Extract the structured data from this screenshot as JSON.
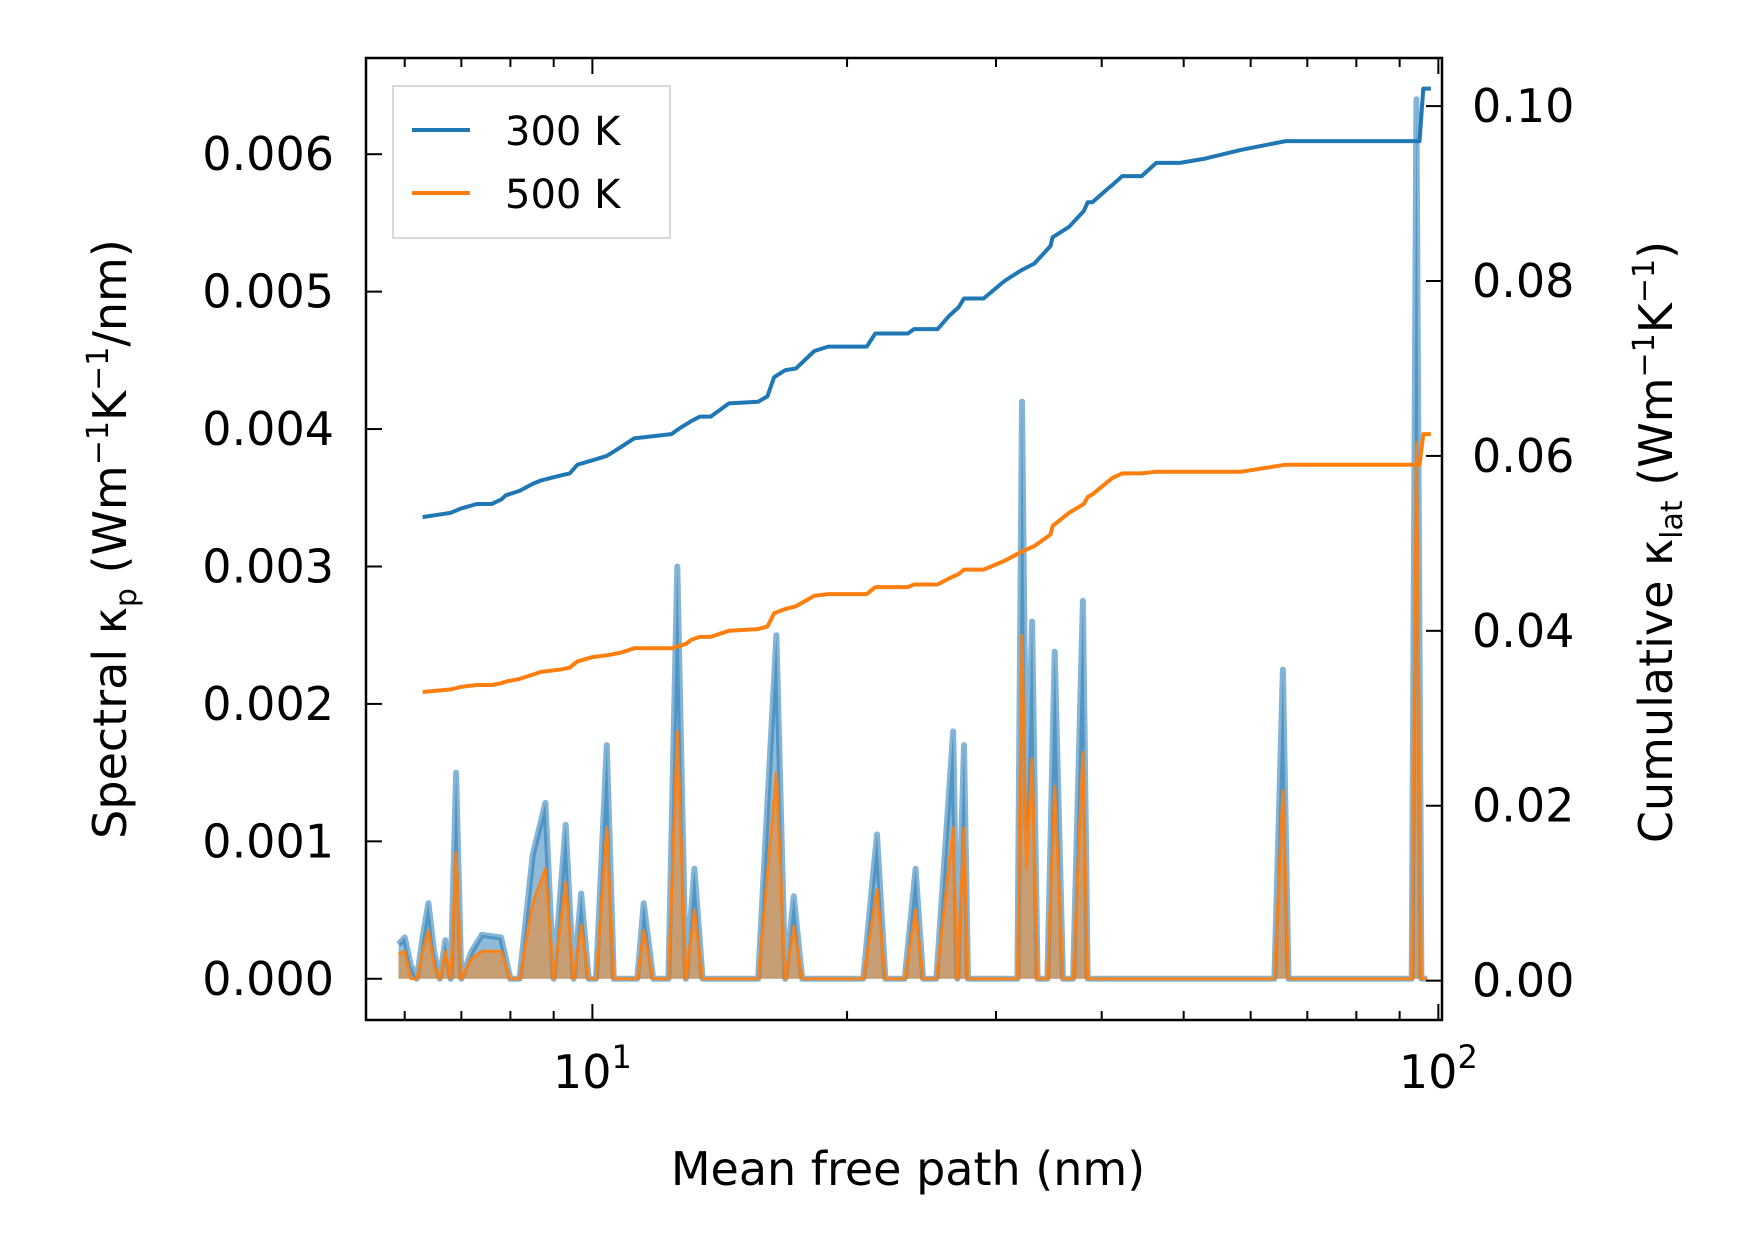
{
  "chart_data": {
    "type": "line",
    "xlabel": "Mean free path (nm)",
    "ylabel_left": {
      "main": "Spectral κ",
      "sub": "p",
      "unit_prefix": " (Wm",
      "exp1": "−1",
      "unit_mid": "K",
      "exp2": "−1",
      "unit_suffix": "/nm)"
    },
    "ylabel_right": {
      "main": "Cumulative κ",
      "sub": "lat",
      "unit_prefix": " (Wm",
      "exp1": "−1",
      "unit_mid": "K",
      "exp2": "−1",
      "unit_suffix": ")"
    },
    "x_scale": "log",
    "xlim": [
      5.4,
      101
    ],
    "ylim_left": [
      -0.0003,
      0.0067
    ],
    "ylim_right": [
      -0.0045,
      0.1055
    ],
    "x_ticks": [
      {
        "value": 10,
        "base": "10",
        "exp": "1"
      },
      {
        "value": 100,
        "base": "10",
        "exp": "2"
      }
    ],
    "y_ticks_left": [
      "0.000",
      "0.001",
      "0.002",
      "0.003",
      "0.004",
      "0.005",
      "0.006"
    ],
    "y_ticks_right": [
      "0.00",
      "0.02",
      "0.04",
      "0.06",
      "0.08",
      "0.10"
    ],
    "legend": {
      "position": "upper-left",
      "entries": [
        {
          "label": "300 K",
          "color": "#1f77b4"
        },
        {
          "label": "500 K",
          "color": "#ff7f0e"
        }
      ]
    },
    "colors": {
      "s300": "#1f77b4",
      "s500": "#ff7f0e",
      "fill300": "#1f77b4",
      "fill500": "#ff7f0e"
    },
    "cumulative": [
      {
        "name": "300 K",
        "axis": "right",
        "x": [
          6.3,
          6.8,
          7.0,
          7.3,
          7.6,
          7.8,
          7.9,
          8.2,
          8.5,
          8.7,
          9.2,
          9.4,
          9.6,
          10.0,
          10.4,
          10.8,
          11.2,
          12.4,
          12.7,
          12.9,
          13.1,
          13.4,
          13.8,
          14.5,
          15.7,
          16.1,
          16.4,
          16.9,
          17.4,
          18.3,
          19.0,
          21.1,
          21.6,
          23.6,
          24.0,
          25.6,
          26.4,
          27.1,
          27.5,
          29.0,
          30.7,
          32.1,
          33.3,
          34.8,
          35.0,
          36.6,
          38.1,
          38.5,
          39.0,
          40.6,
          41.2,
          42.3,
          44.6,
          46.4,
          47.0,
          49.5,
          53.0,
          58.5,
          66.0,
          68.0,
          72.0,
          90.5,
          95.0,
          96.0,
          98.0
        ],
        "y": [
          0.053,
          0.0535,
          0.054,
          0.0545,
          0.0545,
          0.055,
          0.0555,
          0.056,
          0.0568,
          0.0572,
          0.0578,
          0.058,
          0.059,
          0.0595,
          0.06,
          0.061,
          0.062,
          0.0625,
          0.0632,
          0.0636,
          0.064,
          0.0645,
          0.0645,
          0.066,
          0.0662,
          0.0668,
          0.069,
          0.0698,
          0.07,
          0.072,
          0.0725,
          0.0725,
          0.074,
          0.074,
          0.0745,
          0.0745,
          0.076,
          0.077,
          0.078,
          0.078,
          0.08,
          0.0812,
          0.082,
          0.084,
          0.085,
          0.0862,
          0.088,
          0.089,
          0.089,
          0.0905,
          0.091,
          0.092,
          0.092,
          0.0935,
          0.0935,
          0.0935,
          0.094,
          0.095,
          0.096,
          0.096,
          0.096,
          0.096,
          0.096,
          0.102,
          0.102
        ]
      },
      {
        "name": "500 K",
        "axis": "right",
        "x": [
          6.3,
          6.8,
          7.0,
          7.3,
          7.6,
          7.8,
          7.9,
          8.2,
          8.5,
          8.7,
          9.2,
          9.4,
          9.6,
          10.0,
          10.4,
          10.8,
          11.2,
          12.4,
          12.7,
          12.9,
          13.1,
          13.4,
          13.8,
          14.5,
          15.7,
          16.1,
          16.4,
          16.9,
          17.4,
          18.3,
          19.0,
          21.1,
          21.6,
          23.6,
          24.0,
          25.6,
          26.4,
          27.1,
          27.5,
          29.0,
          30.7,
          32.1,
          33.3,
          34.8,
          35.0,
          36.6,
          38.1,
          38.5,
          39.0,
          40.6,
          41.2,
          42.3,
          44.6,
          46.4,
          47.0,
          49.5,
          53.0,
          58.5,
          66.0,
          68.0,
          72.0,
          90.5,
          95.0,
          96.0,
          98.0
        ],
        "y": [
          0.033,
          0.0333,
          0.0336,
          0.0338,
          0.0338,
          0.034,
          0.0342,
          0.0345,
          0.035,
          0.0353,
          0.0356,
          0.0358,
          0.0365,
          0.037,
          0.0372,
          0.0375,
          0.038,
          0.038,
          0.0383,
          0.0385,
          0.039,
          0.0393,
          0.0393,
          0.04,
          0.0402,
          0.0405,
          0.042,
          0.0425,
          0.0428,
          0.044,
          0.0442,
          0.0442,
          0.045,
          0.045,
          0.0453,
          0.0453,
          0.046,
          0.0465,
          0.047,
          0.047,
          0.048,
          0.049,
          0.0497,
          0.051,
          0.052,
          0.0535,
          0.0545,
          0.0553,
          0.0556,
          0.057,
          0.0575,
          0.058,
          0.058,
          0.0582,
          0.0582,
          0.0582,
          0.0582,
          0.0582,
          0.059,
          0.059,
          0.059,
          0.059,
          0.059,
          0.0625,
          0.0625
        ]
      }
    ],
    "spectral": [
      {
        "name": "300 K",
        "axis": "left",
        "x": [
          5.9,
          6.0,
          6.1,
          6.2,
          6.3,
          6.4,
          6.5,
          6.6,
          6.7,
          6.8,
          6.9,
          7.0,
          7.2,
          7.4,
          7.8,
          8.0,
          8.2,
          8.5,
          8.8,
          9.0,
          9.3,
          9.5,
          9.7,
          9.9,
          10.1,
          10.4,
          10.6,
          11.1,
          11.3,
          11.5,
          11.8,
          12.1,
          12.3,
          12.6,
          12.9,
          13.2,
          13.5,
          14.0,
          14.5,
          15.0,
          15.7,
          16.5,
          16.9,
          17.3,
          17.7,
          18.0,
          18.4,
          19.0,
          19.9,
          20.9,
          21.7,
          22.2,
          23.4,
          24.1,
          24.6,
          25.5,
          26.7,
          27.0,
          27.5,
          27.8,
          30.0,
          31.0,
          31.8,
          32.2,
          32.6,
          33.1,
          33.6,
          34.5,
          35.2,
          36.0,
          37.0,
          38.0,
          38.5,
          39.2,
          40.0,
          41.0,
          42.0,
          43.0,
          44.0,
          48.0,
          55.0,
          62.0,
          64.0,
          65.5,
          66.5,
          68.0,
          72.0,
          80.0,
          91.5,
          93.0,
          94.2,
          95.5,
          97.0
        ],
        "y": [
          0.00025,
          0.0003,
          0.0001,
          0.0,
          0.0003,
          0.00055,
          0.0002,
          0.0,
          0.00028,
          0.0,
          0.0015,
          0.0,
          0.0002,
          0.00032,
          0.0003,
          0.0,
          0.0,
          0.0009,
          0.00128,
          0.0,
          0.00112,
          0.0,
          0.00062,
          0.0,
          0.0,
          0.0017,
          0.0,
          0.0,
          0.0,
          0.00055,
          0.0,
          0.0,
          0.0,
          0.003,
          0.0,
          0.0008,
          0.0,
          0.0,
          0.0,
          0.0,
          0.0,
          0.0025,
          0.0,
          0.0006,
          0.0,
          0.0,
          0.0,
          0.0,
          0.0,
          0.0,
          0.00105,
          0.0,
          0.0,
          0.0008,
          0.0,
          0.0,
          0.0018,
          0.0,
          0.0017,
          0.0,
          0.0,
          0.0,
          0.0,
          0.0042,
          0.0011,
          0.0026,
          0.0,
          0.0,
          0.00238,
          0.0,
          0.0,
          0.00275,
          0.0,
          0.0,
          0.0,
          0.0,
          0.0,
          0.0,
          0.0,
          0.0,
          0.0,
          0.0,
          0.0,
          0.00225,
          0.0,
          0.0,
          0.0,
          0.0,
          0.0,
          0.0,
          0.0064,
          0.0,
          0.0
        ]
      },
      {
        "name": "500 K",
        "axis": "left",
        "x": [
          5.9,
          6.0,
          6.1,
          6.2,
          6.3,
          6.4,
          6.5,
          6.6,
          6.7,
          6.8,
          6.9,
          7.0,
          7.2,
          7.4,
          7.8,
          8.0,
          8.2,
          8.5,
          8.8,
          9.0,
          9.3,
          9.5,
          9.7,
          9.9,
          10.1,
          10.4,
          10.6,
          11.1,
          11.3,
          11.5,
          11.8,
          12.1,
          12.3,
          12.6,
          12.9,
          13.2,
          13.5,
          14.0,
          14.5,
          15.0,
          15.7,
          16.5,
          16.9,
          17.3,
          17.7,
          18.0,
          18.4,
          19.0,
          19.9,
          20.9,
          21.7,
          22.2,
          23.4,
          24.1,
          24.6,
          25.5,
          26.7,
          27.0,
          27.5,
          27.8,
          30.0,
          31.0,
          31.8,
          32.2,
          32.6,
          33.1,
          33.6,
          34.5,
          35.2,
          36.0,
          37.0,
          38.0,
          38.5,
          39.2,
          40.0,
          41.0,
          42.0,
          43.0,
          44.0,
          48.0,
          55.0,
          62.0,
          64.0,
          65.5,
          66.5,
          68.0,
          72.0,
          80.0,
          91.5,
          93.0,
          94.2,
          95.5,
          97.0
        ],
        "y": [
          0.00018,
          0.0002,
          0.0,
          0.0,
          0.0002,
          0.00035,
          0.0001,
          0.0,
          0.0002,
          0.0,
          0.00092,
          0.0,
          0.00015,
          0.0002,
          0.0002,
          0.0,
          0.0,
          0.00055,
          0.0008,
          0.0,
          0.0007,
          0.0,
          0.00039,
          0.0,
          0.0,
          0.0011,
          0.0,
          0.0,
          0.0,
          0.00035,
          0.0,
          0.0,
          0.0,
          0.0018,
          0.0,
          0.0005,
          0.0,
          0.0,
          0.0,
          0.0,
          0.0,
          0.0015,
          0.0,
          0.00038,
          0.0,
          0.0,
          0.0,
          0.0,
          0.0,
          0.0,
          0.00065,
          0.0,
          0.0,
          0.0005,
          0.0,
          0.0,
          0.0011,
          0.0,
          0.0011,
          0.0,
          0.0,
          0.0,
          0.0,
          0.0025,
          0.0008,
          0.0016,
          0.0,
          0.0,
          0.0014,
          0.0,
          0.0,
          0.00165,
          0.0,
          0.0,
          0.0,
          0.0,
          0.0,
          0.0,
          0.0,
          0.0,
          0.0,
          0.0,
          0.0,
          0.00137,
          0.0,
          0.0,
          0.0,
          0.0,
          0.0,
          0.0,
          0.0039,
          0.0,
          0.0
        ]
      }
    ]
  }
}
